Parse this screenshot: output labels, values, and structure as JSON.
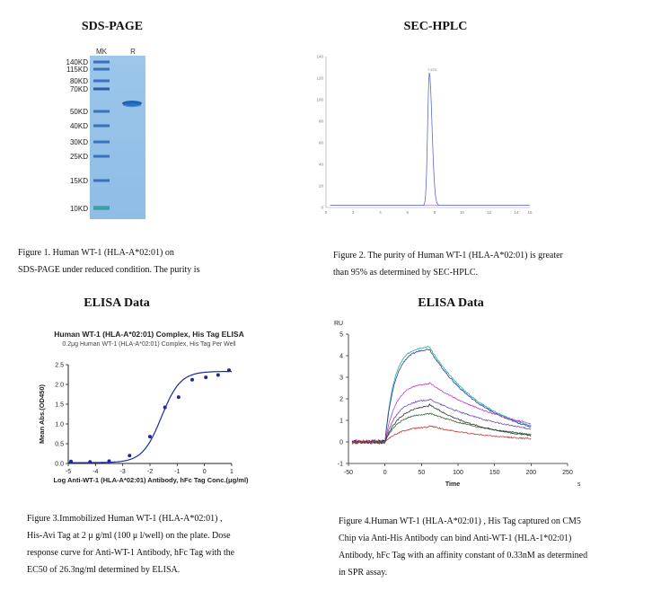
{
  "panels": {
    "sds": {
      "title": "SDS-PAGE",
      "lanes": [
        "MK",
        "R"
      ],
      "markers": [
        "140KD",
        "115KD",
        "80KD",
        "70KD",
        "50KD",
        "40KD",
        "30KD",
        "25KD",
        "15KD",
        "10KD"
      ],
      "caption_lines": [
        "Figure 1. Human WT-1 (HLA-A*02:01) on",
        "SDS-PAGE under reduced condition. The purity is"
      ]
    },
    "sec": {
      "title": "SEC-HPLC",
      "caption_lines": [
        "Figure 2. The purity of Human WT-1 (HLA-A*02:01) is greater",
        "than 95% as determined by SEC-HPLC."
      ]
    },
    "elisa": {
      "title": "ELISA Data",
      "chart_title": "Human WT-1 (HLA-A*02:01) Complex, His Tag ELISA",
      "chart_subtitle": "0.2μg Human WT-1 (HLA-A*02:01) Complex, His Tag Per Well",
      "caption_lines": [
        "Figure 3.Immobilized Human WT-1 (HLA-A*02:01) ,",
        "His-Avi Tag at 2 μ g/ml (100 μ l/well) on the plate. Dose",
        "response curve for Anti-WT-1 Antibody, hFc Tag with the",
        "EC50 of 26.3ng/ml determined by ELISA."
      ]
    },
    "spr": {
      "title": "ELISA Data",
      "caption_lines": [
        "Figure 4.Human WT-1 (HLA-A*02:01) , His Tag captured on CM5",
        "Chip via Anti-His Antibody can bind Anti-WT-1 (HLA-1*02:01)",
        "Antibody, hFc Tag with an affinity constant of 0.33nM as determined",
        "in SPR assay."
      ]
    }
  },
  "chart_data": [
    {
      "type": "line",
      "chart": "sec-hplc",
      "x_ticks": [
        "0",
        "2",
        "4",
        "6",
        "8",
        "10",
        "12",
        "14",
        "15"
      ],
      "y_ticks": [
        "0",
        "20",
        "40",
        "60",
        "80",
        "100",
        "120",
        "140"
      ],
      "xlim": [
        0,
        15
      ],
      "ylim": [
        0,
        140
      ],
      "peak": {
        "x": 7.6,
        "y": 125
      },
      "peak_label": "7.570"
    },
    {
      "type": "scatter",
      "chart": "elisa",
      "title": "Human WT-1 (HLA-A*02:01) Complex, His Tag ELISA",
      "subtitle": "0.2μg Human WT-1 (HLA-A*02:01) Complex, His Tag Per Well",
      "xlabel": "Log Anti-WT-1 (HLA-A*02:01) Antibody, hFc Tag Conc.(μg/ml)",
      "ylabel": "Mean Abs.(OD450)",
      "xlim": [
        -5,
        1
      ],
      "ylim": [
        0,
        2.5
      ],
      "x_ticks": [
        "-5",
        "-4",
        "-3",
        "-2",
        "-1",
        "0",
        "1"
      ],
      "y_ticks": [
        "0.0",
        "0.5",
        "1.0",
        "1.5",
        "2.0",
        "2.5"
      ],
      "x": [
        -4.9,
        -4.2,
        -3.5,
        -2.75,
        -2.0,
        -1.45,
        -0.95,
        -0.45,
        0.05,
        0.5,
        0.9
      ],
      "y": [
        0.05,
        0.04,
        0.06,
        0.2,
        0.68,
        1.42,
        1.68,
        2.12,
        2.18,
        2.24,
        2.36
      ],
      "fit": {
        "bottom": 0.02,
        "top": 2.33,
        "logEC50": -1.58,
        "hill": 1.25
      }
    },
    {
      "type": "line",
      "chart": "spr",
      "xlabel": "Time",
      "ylabel": "RU",
      "x_unit": "s",
      "xlim": [
        -50,
        250
      ],
      "ylim": [
        -1,
        5
      ],
      "x_ticks": [
        "-50",
        "0",
        "50",
        "100",
        "150",
        "200",
        "250"
      ],
      "y_ticks": [
        "-1",
        "0",
        "1",
        "2",
        "3",
        "4",
        "5"
      ],
      "series": [
        {
          "color": "#1ab0a0",
          "values": [
            {
              "x": 0,
              "y": 0
            },
            {
              "x": 60,
              "y": 4.45
            },
            {
              "x": 200,
              "y": 0.75
            }
          ]
        },
        {
          "color": "#2a3aa8",
          "values": [
            {
              "x": 0,
              "y": 0
            },
            {
              "x": 60,
              "y": 4.35
            },
            {
              "x": 200,
              "y": 0.7
            }
          ]
        },
        {
          "color": "#c43ac0",
          "values": [
            {
              "x": 0,
              "y": 0
            },
            {
              "x": 60,
              "y": 2.75
            },
            {
              "x": 200,
              "y": 0.85
            }
          ]
        },
        {
          "color": "#6a4ab8",
          "values": [
            {
              "x": 0,
              "y": 0
            },
            {
              "x": 60,
              "y": 2.0
            },
            {
              "x": 200,
              "y": 0.6
            }
          ]
        },
        {
          "color": "#3a6a3a",
          "values": [
            {
              "x": 0,
              "y": 0
            },
            {
              "x": 60,
              "y": 1.35
            },
            {
              "x": 200,
              "y": 0.35
            }
          ]
        },
        {
          "color": "#333333",
          "values": [
            {
              "x": 0,
              "y": 0
            },
            {
              "x": 60,
              "y": 1.75
            },
            {
              "x": 200,
              "y": 0.3
            }
          ]
        },
        {
          "color": "#c83a3a",
          "values": [
            {
              "x": 0,
              "y": 0
            },
            {
              "x": 60,
              "y": 0.75
            },
            {
              "x": 200,
              "y": 0.15
            }
          ]
        }
      ]
    }
  ]
}
